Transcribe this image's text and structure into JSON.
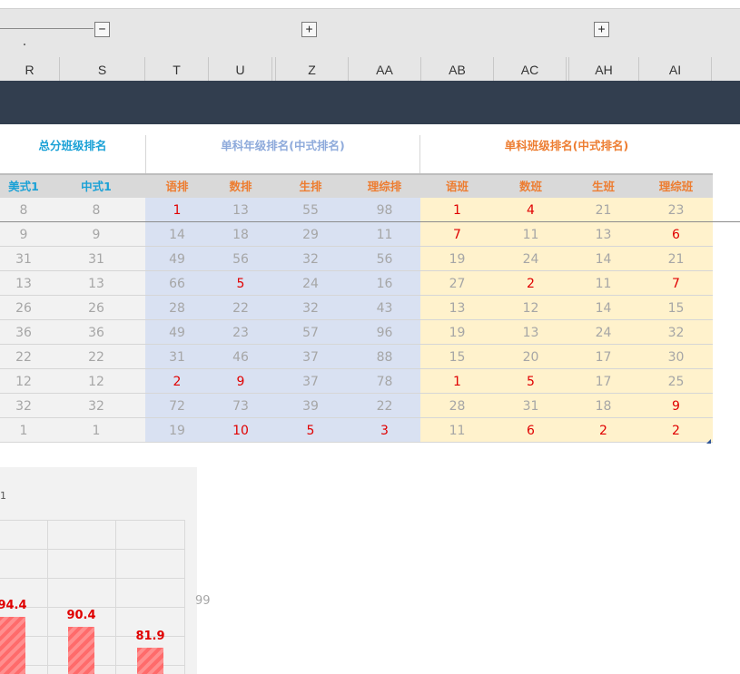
{
  "grouping": {
    "buttons": [
      "−",
      "+",
      "+"
    ]
  },
  "columns": [
    "R",
    "S",
    "T",
    "U",
    "Z",
    "AA",
    "AB",
    "AC",
    "AH",
    "AI"
  ],
  "groups": [
    {
      "title": "总分班级排名",
      "color": "#1aa1d6"
    },
    {
      "title": "单科年级排名(中式排名)",
      "color": "#8eaadb"
    },
    {
      "title": "单科班级排名(中式排名)",
      "color": "#ed7d31"
    }
  ],
  "headers": [
    {
      "label": "美式1",
      "color": "#1aa1d6"
    },
    {
      "label": "中式1",
      "color": "#1aa1d6"
    },
    {
      "label": "语排",
      "color": "#ed7d31"
    },
    {
      "label": "数排",
      "color": "#ed7d31"
    },
    {
      "label": "生排",
      "color": "#ed7d31"
    },
    {
      "label": "理综排",
      "color": "#ed7d31"
    },
    {
      "label": "语班",
      "color": "#ed7d31"
    },
    {
      "label": "数班",
      "color": "#ed7d31"
    },
    {
      "label": "生班",
      "color": "#ed7d31"
    },
    {
      "label": "理综班",
      "color": "#ed7d31"
    }
  ],
  "rows": [
    [
      "8",
      "8",
      "1",
      "13",
      "55",
      "98",
      "1",
      "4",
      "21",
      "23"
    ],
    [
      "9",
      "9",
      "14",
      "18",
      "29",
      "11",
      "7",
      "11",
      "13",
      "6"
    ],
    [
      "31",
      "31",
      "49",
      "56",
      "32",
      "56",
      "19",
      "24",
      "14",
      "21"
    ],
    [
      "13",
      "13",
      "66",
      "5",
      "24",
      "16",
      "27",
      "2",
      "11",
      "7"
    ],
    [
      "26",
      "26",
      "28",
      "22",
      "32",
      "43",
      "13",
      "12",
      "14",
      "15"
    ],
    [
      "36",
      "36",
      "49",
      "23",
      "57",
      "96",
      "19",
      "13",
      "24",
      "32"
    ],
    [
      "22",
      "22",
      "31",
      "46",
      "37",
      "88",
      "15",
      "20",
      "17",
      "30"
    ],
    [
      "12",
      "12",
      "2",
      "9",
      "37",
      "78",
      "1",
      "5",
      "17",
      "25"
    ],
    [
      "32",
      "32",
      "72",
      "73",
      "39",
      "22",
      "28",
      "31",
      "18",
      "9"
    ],
    [
      "1",
      "1",
      "19",
      "10",
      "5",
      "3",
      "11",
      "6",
      "2",
      "2"
    ]
  ],
  "highlight_threshold": 10,
  "region_colors": {
    "total": "#f2f2f2",
    "grade": "#d9e1f2",
    "class": "#fff2cc",
    "highlight": "#e00000"
  },
  "chart": {
    "tick_label": "1",
    "bar_color": "#ff6b6b",
    "values": [
      94.4,
      90.4,
      81.9
    ],
    "labels": [
      "94.4",
      "90.4",
      "81.9"
    ]
  },
  "aside_value": "99"
}
